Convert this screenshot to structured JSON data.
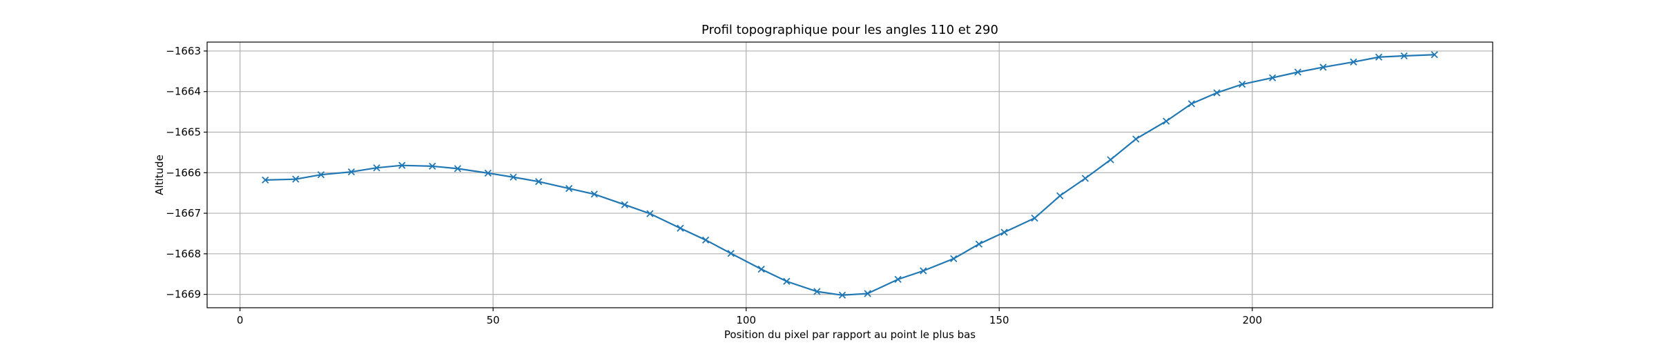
{
  "chart_data": {
    "type": "line",
    "title": "Profil topographique pour les angles 110 et 290",
    "xlabel": "Position du pixel par rapport au point le plus bas",
    "ylabel": "Altitude",
    "xlim": [
      -6.5,
      247.5
    ],
    "ylim": [
      -1669.33,
      -1662.78
    ],
    "xticks": [
      0,
      50,
      100,
      150,
      200
    ],
    "yticks": [
      -1669,
      -1668,
      -1667,
      -1666,
      -1665,
      -1664,
      -1663
    ],
    "xtick_labels": [
      "0",
      "50",
      "100",
      "150",
      "200"
    ],
    "ytick_labels": [
      "−1669",
      "−1668",
      "−1667",
      "−1666",
      "−1665",
      "−1664",
      "−1663"
    ],
    "grid": true,
    "legend": null,
    "series": [
      {
        "color": "#1f77b4",
        "marker": "x",
        "x": [
          5,
          11,
          16,
          22,
          27,
          32,
          38,
          43,
          49,
          54,
          59,
          65,
          70,
          76,
          81,
          87,
          92,
          97,
          103,
          108,
          114,
          119,
          124,
          130,
          135,
          141,
          146,
          151,
          157,
          162,
          167,
          172,
          177,
          183,
          188,
          193,
          198,
          204,
          209,
          214,
          220,
          225,
          230,
          236
        ],
        "y": [
          -1666.18,
          -1666.16,
          -1666.05,
          -1665.98,
          -1665.88,
          -1665.82,
          -1665.84,
          -1665.9,
          -1666.01,
          -1666.11,
          -1666.22,
          -1666.39,
          -1666.53,
          -1666.79,
          -1667.01,
          -1667.37,
          -1667.66,
          -1667.99,
          -1668.38,
          -1668.68,
          -1668.93,
          -1669.02,
          -1668.98,
          -1668.63,
          -1668.42,
          -1668.12,
          -1667.76,
          -1667.47,
          -1667.12,
          -1666.57,
          -1666.14,
          -1665.68,
          -1665.17,
          -1664.73,
          -1664.3,
          -1664.03,
          -1663.82,
          -1663.66,
          -1663.52,
          -1663.4,
          -1663.27,
          -1663.15,
          -1663.12,
          -1663.09
        ]
      }
    ]
  }
}
